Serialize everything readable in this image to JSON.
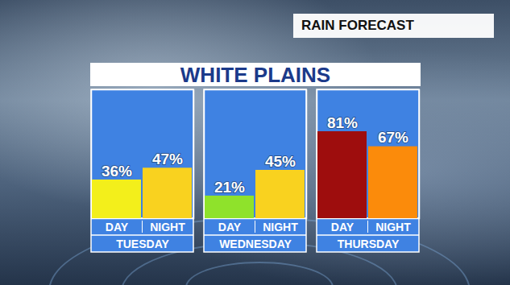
{
  "chart_data": {
    "type": "bar",
    "title": "WHITE PLAINS",
    "subtitle": "RAIN FORECAST",
    "categories": [
      "DAY",
      "NIGHT"
    ],
    "groups": [
      {
        "name": "TUESDAY",
        "values": [
          36,
          47
        ],
        "value_labels": [
          "36%",
          "47%"
        ],
        "colors": [
          "#f3ef1b",
          "#f9d21f"
        ]
      },
      {
        "name": "WEDNESDAY",
        "values": [
          21,
          45
        ],
        "value_labels": [
          "21%",
          "45%"
        ],
        "colors": [
          "#8fe22b",
          "#f9d21f"
        ]
      },
      {
        "name": "THURSDAY",
        "values": [
          81,
          67
        ],
        "value_labels": [
          "81%",
          "67%"
        ],
        "colors": [
          "#9e0d0d",
          "#fb8b0b"
        ]
      }
    ],
    "ylim": [
      0,
      120
    ],
    "tick_labels": "x",
    "data_labels": true
  }
}
